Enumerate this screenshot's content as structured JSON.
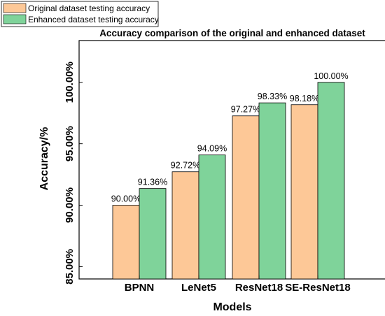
{
  "chart_data": {
    "type": "bar",
    "title": "Accuracy comparison of the original and enhanced dataset",
    "xlabel": "Models",
    "ylabel": "Accuracy/%",
    "categories": [
      "BPNN",
      "LeNet5",
      "ResNet18",
      "SE-ResNet18"
    ],
    "series": [
      {
        "name": "Original dataset testing accuracy",
        "color": "#FDC897",
        "values": [
          90.0,
          92.72,
          97.27,
          98.18
        ],
        "labels": [
          "90.00%",
          "92.72%",
          "97.27%",
          "98.18%"
        ]
      },
      {
        "name": "Enhanced dataset testing accuracy",
        "color": "#7FD39A",
        "values": [
          91.36,
          94.09,
          98.33,
          100.0
        ],
        "labels": [
          "91.36%",
          "94.09%",
          "98.33%",
          "100.00%"
        ]
      }
    ],
    "ylim": [
      84,
      103.4
    ],
    "yticks": [
      85,
      90,
      95,
      100
    ],
    "ytick_labels": [
      "85.00%",
      "90.00%",
      "95.00%",
      "100.00%"
    ],
    "legend_position": "top-left, outside plot",
    "grid": false
  }
}
